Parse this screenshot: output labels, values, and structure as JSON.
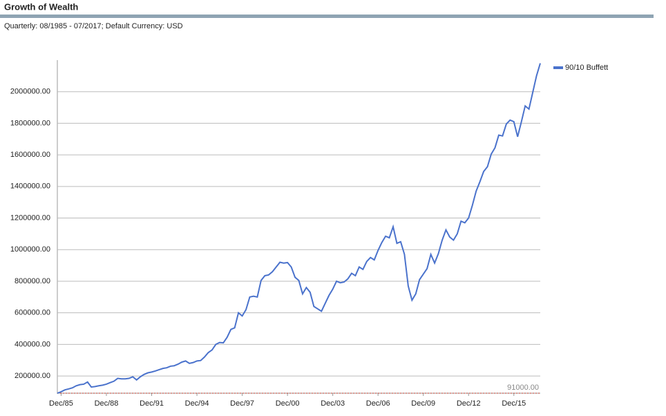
{
  "chart_data": {
    "type": "line",
    "title": "Growth of Wealth",
    "subtitle": "Quarterly: 08/1985 - 07/2017; Default Currency: USD",
    "categories": [
      null,
      "Dec/85",
      null,
      null,
      null,
      null,
      null,
      null,
      null,
      null,
      null,
      null,
      null,
      "Dec/88",
      null,
      null,
      null,
      null,
      null,
      null,
      null,
      null,
      null,
      null,
      null,
      "Dec/91",
      null,
      null,
      null,
      null,
      null,
      null,
      null,
      null,
      null,
      null,
      null,
      "Dec/94",
      null,
      null,
      null,
      null,
      null,
      null,
      null,
      null,
      null,
      null,
      null,
      "Dec/97",
      null,
      null,
      null,
      null,
      null,
      null,
      null,
      null,
      null,
      null,
      null,
      "Dec/00",
      null,
      null,
      null,
      null,
      null,
      null,
      null,
      null,
      null,
      null,
      null,
      "Dec/03",
      null,
      null,
      null,
      null,
      null,
      null,
      null,
      null,
      null,
      null,
      null,
      "Dec/06",
      null,
      null,
      null,
      null,
      null,
      null,
      null,
      null,
      null,
      null,
      null,
      "Dec/09",
      null,
      null,
      null,
      null,
      null,
      null,
      null,
      null,
      null,
      null,
      null,
      "Dec/12",
      null,
      null,
      null,
      null,
      null,
      null,
      null,
      null,
      null,
      null,
      null,
      "Dec/15",
      null,
      null,
      null,
      null,
      null,
      null,
      null
    ],
    "series": [
      {
        "name": "90/10 Buffett",
        "color": "#4a72cc",
        "values": [
          91000,
          100000,
          112000,
          118000,
          125000,
          138000,
          145000,
          148000,
          162000,
          130000,
          133000,
          138000,
          142000,
          148000,
          158000,
          167000,
          185000,
          182000,
          182000,
          185000,
          195000,
          175000,
          195000,
          210000,
          220000,
          225000,
          232000,
          240000,
          248000,
          252000,
          262000,
          265000,
          275000,
          288000,
          295000,
          280000,
          285000,
          295000,
          298000,
          320000,
          348000,
          365000,
          400000,
          412000,
          410000,
          445000,
          495000,
          505000,
          600000,
          580000,
          620000,
          700000,
          705000,
          700000,
          805000,
          835000,
          840000,
          860000,
          890000,
          920000,
          915000,
          918000,
          890000,
          825000,
          805000,
          720000,
          760000,
          730000,
          640000,
          625000,
          610000,
          660000,
          710000,
          750000,
          800000,
          790000,
          795000,
          815000,
          850000,
          835000,
          890000,
          875000,
          925000,
          950000,
          935000,
          995000,
          1045000,
          1085000,
          1075000,
          1145000,
          1040000,
          1050000,
          970000,
          770000,
          680000,
          720000,
          810000,
          845000,
          880000,
          970000,
          915000,
          975000,
          1060000,
          1125000,
          1080000,
          1060000,
          1100000,
          1180000,
          1170000,
          1200000,
          1280000,
          1370000,
          1430000,
          1495000,
          1525000,
          1605000,
          1645000,
          1725000,
          1720000,
          1795000,
          1820000,
          1810000,
          1715000,
          1810000,
          1910000,
          1890000,
          1995000,
          2100000,
          2180000
        ]
      }
    ],
    "ylim": [
      91000,
      2200000
    ],
    "yticks": [
      {
        "value": 200000,
        "label": "200000.00"
      },
      {
        "value": 400000,
        "label": "400000.00"
      },
      {
        "value": 600000,
        "label": "600000.00"
      },
      {
        "value": 800000,
        "label": "800000.00"
      },
      {
        "value": 1000000,
        "label": "1000000.00"
      },
      {
        "value": 1200000,
        "label": "1200000.00"
      },
      {
        "value": 1400000,
        "label": "1400000.00"
      },
      {
        "value": 1600000,
        "label": "1600000.00"
      },
      {
        "value": 1800000,
        "label": "1800000.00"
      },
      {
        "value": 2000000,
        "label": "2000000.00"
      }
    ],
    "grid": true,
    "legend": "right",
    "reference_line": {
      "value": 91000,
      "label": "91000.00",
      "color": "#c0392b"
    }
  }
}
